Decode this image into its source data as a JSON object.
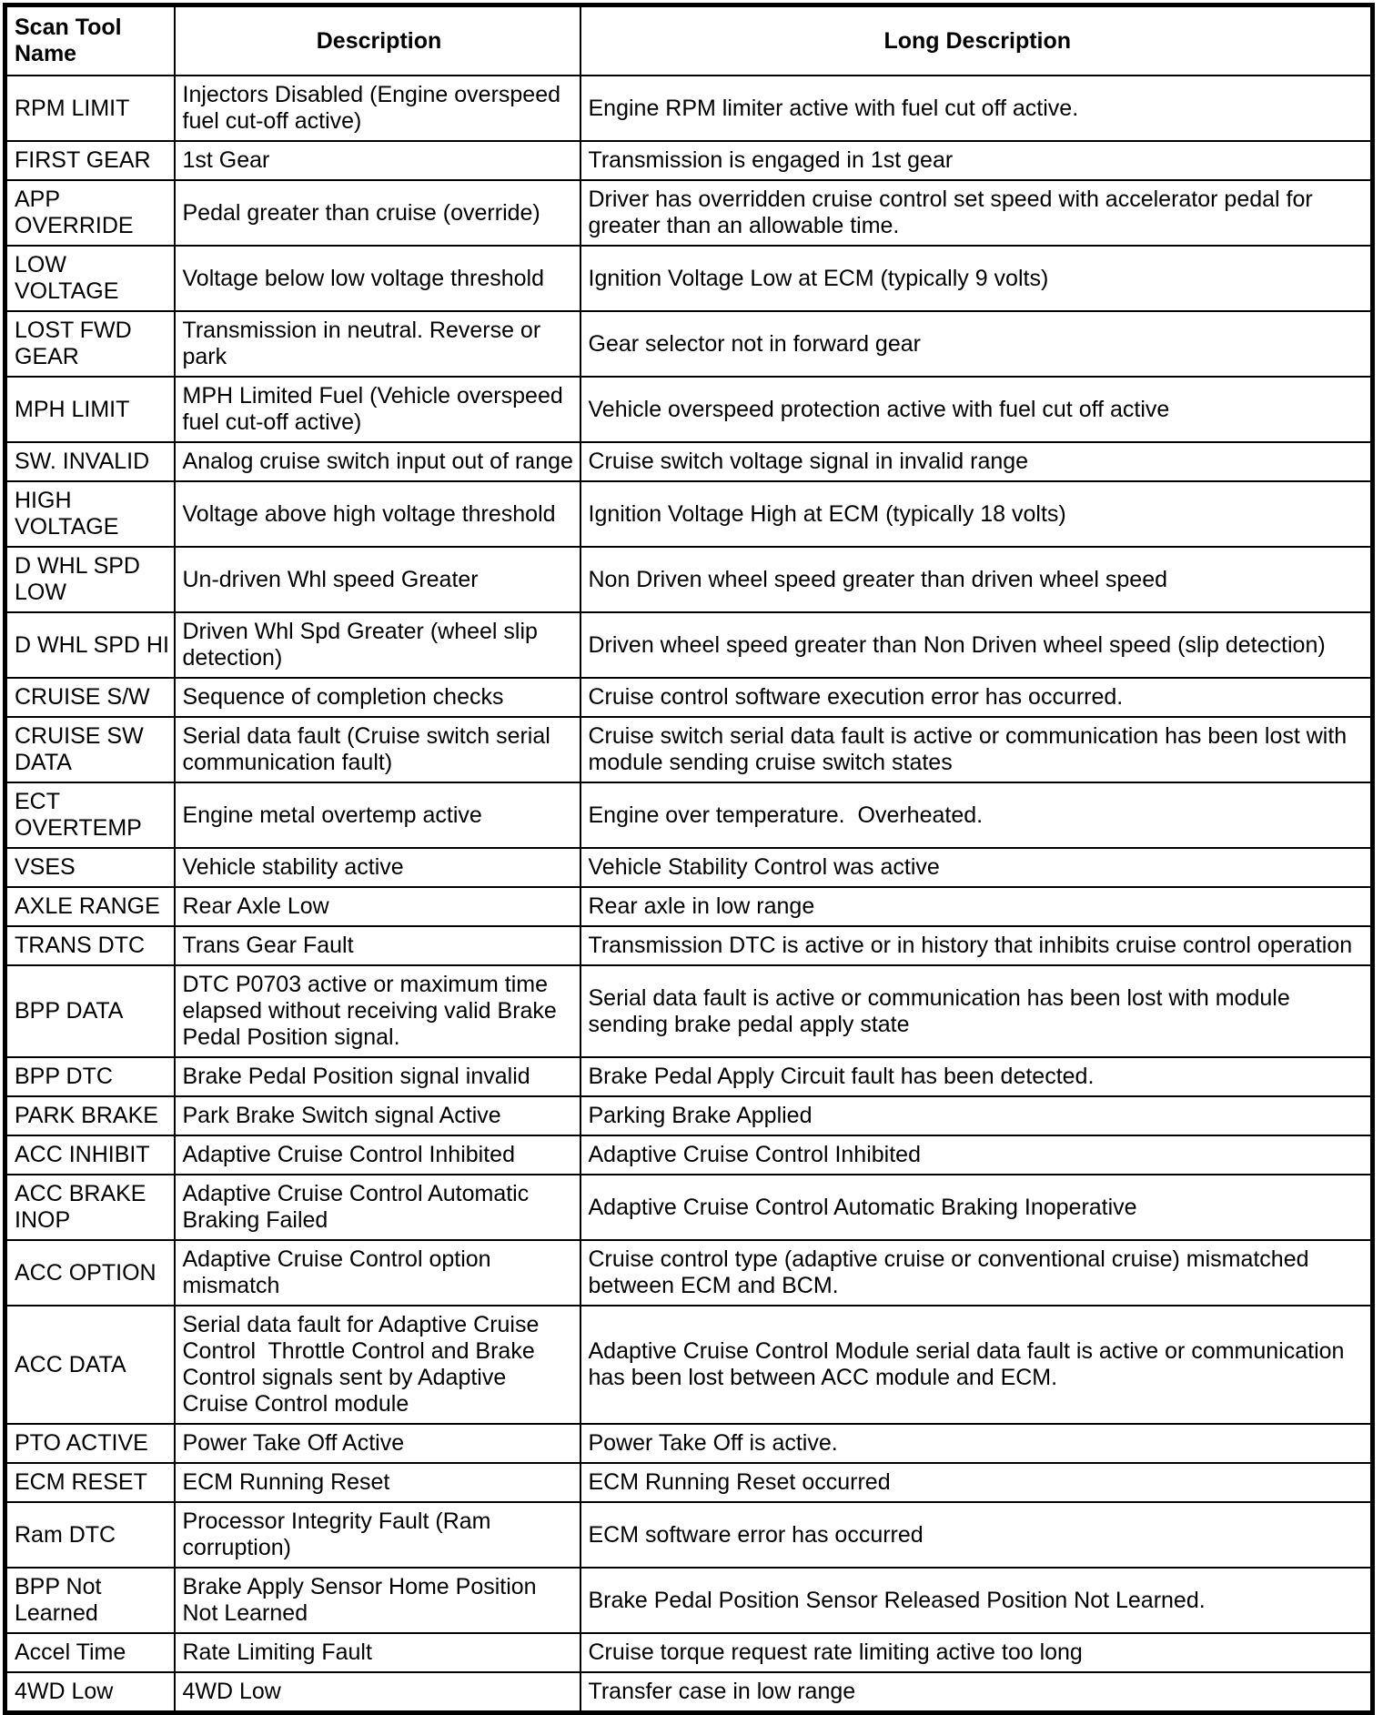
{
  "table": {
    "columns": [
      "Scan Tool Name",
      "Description",
      "Long Description"
    ],
    "rows": [
      {
        "name": "RPM LIMIT",
        "desc": "Injectors Disabled (Engine overspeed fuel cut-off active)",
        "long": "Engine RPM limiter active with fuel cut off active."
      },
      {
        "name": "FIRST GEAR",
        "desc": "1st Gear",
        "long": "Transmission is engaged in 1st gear"
      },
      {
        "name": "APP OVERRIDE",
        "desc": "Pedal greater than cruise (override)",
        "long": "Driver has overridden cruise control set speed with accelerator pedal for greater than an allowable time."
      },
      {
        "name": "LOW VOLTAGE",
        "desc": "Voltage below low voltage threshold",
        "long": "Ignition Voltage Low at ECM (typically 9 volts)"
      },
      {
        "name": "LOST FWD GEAR",
        "desc": "Transmission in neutral. Reverse or park",
        "long": "Gear selector not in forward gear"
      },
      {
        "name": "MPH LIMIT",
        "desc": "MPH Limited Fuel (Vehicle overspeed fuel cut-off active)",
        "long": "Vehicle overspeed protection active with fuel cut off active"
      },
      {
        "name": "SW. INVALID",
        "desc": "Analog cruise switch input out of range",
        "long": "Cruise switch voltage signal in invalid range"
      },
      {
        "name": "HIGH VOLTAGE",
        "desc": "Voltage above high voltage threshold",
        "long": "Ignition Voltage High at ECM (typically 18 volts)"
      },
      {
        "name": "D WHL SPD LOW",
        "desc": "Un-driven Whl speed Greater",
        "long": "Non Driven wheel speed greater than driven wheel speed"
      },
      {
        "name": "D WHL SPD HI",
        "desc": "Driven Whl Spd Greater (wheel slip detection)",
        "long": "Driven wheel speed greater than Non Driven wheel speed (slip detection)"
      },
      {
        "name": "CRUISE S/W",
        "desc": "Sequence of completion checks",
        "long": "Cruise control software execution error has occurred."
      },
      {
        "name": "CRUISE SW DATA",
        "desc": "Serial data fault (Cruise switch serial communication fault)",
        "long": "Cruise switch serial data fault is active or communication has been lost with module sending cruise switch states"
      },
      {
        "name": "ECT OVERTEMP",
        "desc": "Engine metal overtemp active",
        "long": "Engine over temperature.  Overheated."
      },
      {
        "name": "VSES",
        "desc": "Vehicle stability active",
        "long": "Vehicle Stability Control was active"
      },
      {
        "name": "AXLE RANGE",
        "desc": "Rear Axle Low",
        "long": "Rear axle in low range"
      },
      {
        "name": "TRANS DTC",
        "desc": "Trans Gear Fault",
        "long": "Transmission DTC is active or in history that inhibits cruise control operation"
      },
      {
        "name": "BPP DATA",
        "desc": "DTC P0703 active or maximum time elapsed without receiving valid Brake Pedal Position signal.",
        "long": "Serial data fault is active or communication has been lost with module sending brake pedal apply state"
      },
      {
        "name": "BPP DTC",
        "desc": "Brake Pedal Position signal invalid",
        "long": "Brake Pedal Apply Circuit fault has been detected."
      },
      {
        "name": "PARK BRAKE",
        "desc": "Park Brake Switch signal Active",
        "long": "Parking Brake Applied"
      },
      {
        "name": "ACC INHIBIT",
        "desc": "Adaptive Cruise Control Inhibited",
        "long": "Adaptive Cruise Control Inhibited"
      },
      {
        "name": "ACC BRAKE INOP",
        "desc": "Adaptive Cruise Control Automatic Braking Failed",
        "long": "Adaptive Cruise Control Automatic Braking Inoperative"
      },
      {
        "name": "ACC OPTION",
        "desc": "Adaptive Cruise Control option mismatch",
        "long": "Cruise control type (adaptive cruise or conventional cruise) mismatched between ECM and BCM."
      },
      {
        "name": "ACC DATA",
        "desc": "Serial data fault for Adaptive Cruise Control  Throttle Control and Brake Control signals sent by Adaptive Cruise Control module",
        "long": "Adaptive Cruise Control Module serial data fault is active or communication has been lost between ACC module and ECM."
      },
      {
        "name": "PTO ACTIVE",
        "desc": "Power Take Off Active",
        "long": "Power Take Off is active."
      },
      {
        "name": "ECM RESET",
        "desc": "ECM Running Reset",
        "long": "ECM Running Reset occurred"
      },
      {
        "name": "Ram DTC",
        "desc": "Processor Integrity Fault (Ram corruption)",
        "long": "ECM software error has occurred"
      },
      {
        "name": "BPP Not Learned",
        "desc": "Brake Apply Sensor Home Position Not Learned",
        "long": "Brake Pedal Position Sensor Released Position Not Learned."
      },
      {
        "name": "Accel Time",
        "desc": "Rate Limiting Fault",
        "long": "Cruise torque request rate limiting active too long"
      },
      {
        "name": "4WD Low",
        "desc": "4WD Low",
        "long": "Transfer case in low range"
      }
    ]
  }
}
